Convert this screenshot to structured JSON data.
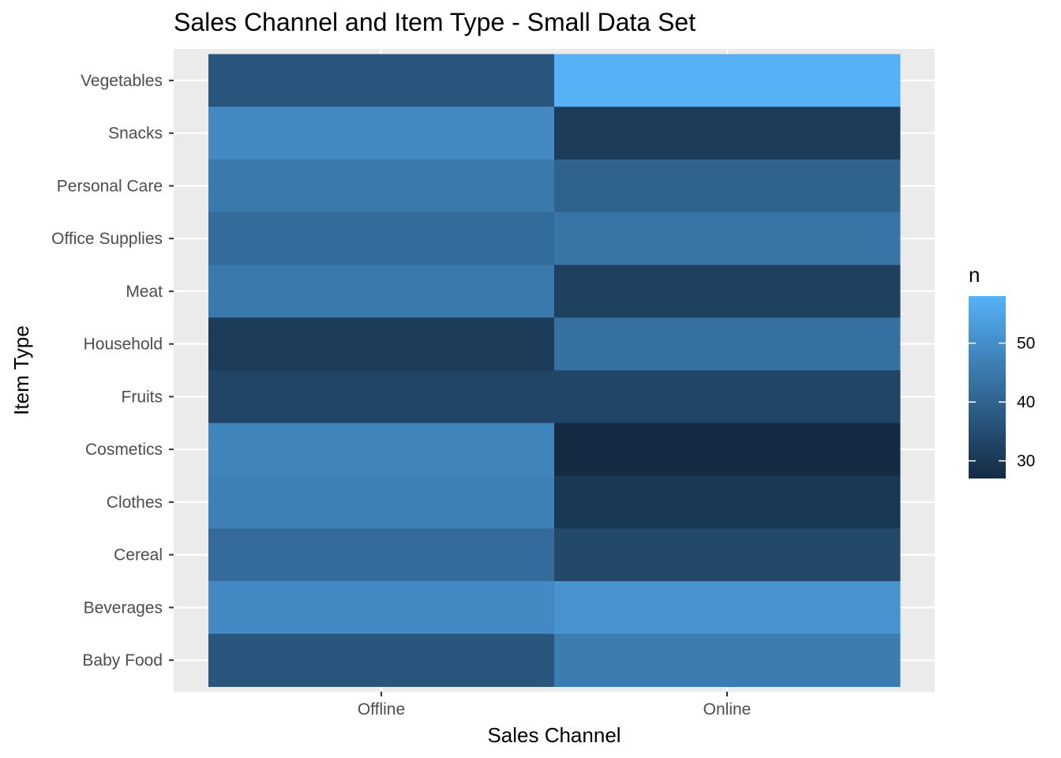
{
  "chart_data": {
    "type": "heatmap",
    "title": "Sales Channel and Item Type - Small Data Set",
    "xlabel": "Sales Channel",
    "ylabel": "Item Type",
    "x_categories": [
      "Offline",
      "Online"
    ],
    "y_categories": [
      "Baby Food",
      "Beverages",
      "Cereal",
      "Clothes",
      "Cosmetics",
      "Fruits",
      "Household",
      "Meat",
      "Office Supplies",
      "Personal Care",
      "Snacks",
      "Vegetables"
    ],
    "cells": [
      {
        "x": "Offline",
        "y": "Vegetables",
        "n": 37
      },
      {
        "x": "Online",
        "y": "Vegetables",
        "n": 58
      },
      {
        "x": "Offline",
        "y": "Snacks",
        "n": 49
      },
      {
        "x": "Online",
        "y": "Snacks",
        "n": 31
      },
      {
        "x": "Offline",
        "y": "Personal Care",
        "n": 45
      },
      {
        "x": "Online",
        "y": "Personal Care",
        "n": 40
      },
      {
        "x": "Offline",
        "y": "Office Supplies",
        "n": 42
      },
      {
        "x": "Online",
        "y": "Office Supplies",
        "n": 44
      },
      {
        "x": "Offline",
        "y": "Meat",
        "n": 45
      },
      {
        "x": "Online",
        "y": "Meat",
        "n": 32
      },
      {
        "x": "Offline",
        "y": "Household",
        "n": 31
      },
      {
        "x": "Online",
        "y": "Household",
        "n": 43
      },
      {
        "x": "Offline",
        "y": "Fruits",
        "n": 33
      },
      {
        "x": "Online",
        "y": "Fruits",
        "n": 33
      },
      {
        "x": "Offline",
        "y": "Cosmetics",
        "n": 48
      },
      {
        "x": "Online",
        "y": "Cosmetics",
        "n": 27
      },
      {
        "x": "Offline",
        "y": "Clothes",
        "n": 47
      },
      {
        "x": "Online",
        "y": "Clothes",
        "n": 30
      },
      {
        "x": "Offline",
        "y": "Cereal",
        "n": 42
      },
      {
        "x": "Online",
        "y": "Cereal",
        "n": 34
      },
      {
        "x": "Offline",
        "y": "Beverages",
        "n": 49
      },
      {
        "x": "Online",
        "y": "Beverages",
        "n": 51
      },
      {
        "x": "Offline",
        "y": "Baby Food",
        "n": 37
      },
      {
        "x": "Online",
        "y": "Baby Food",
        "n": 46
      }
    ],
    "legend": {
      "title": "n",
      "ticks": [
        30,
        40,
        50
      ],
      "range": [
        27,
        58
      ],
      "placement": "right"
    },
    "colors": {
      "low": "#132B43",
      "high": "#56B1F7",
      "panel_background": "#EBEBEB",
      "grid": "#FFFFFF"
    },
    "grid": true
  }
}
